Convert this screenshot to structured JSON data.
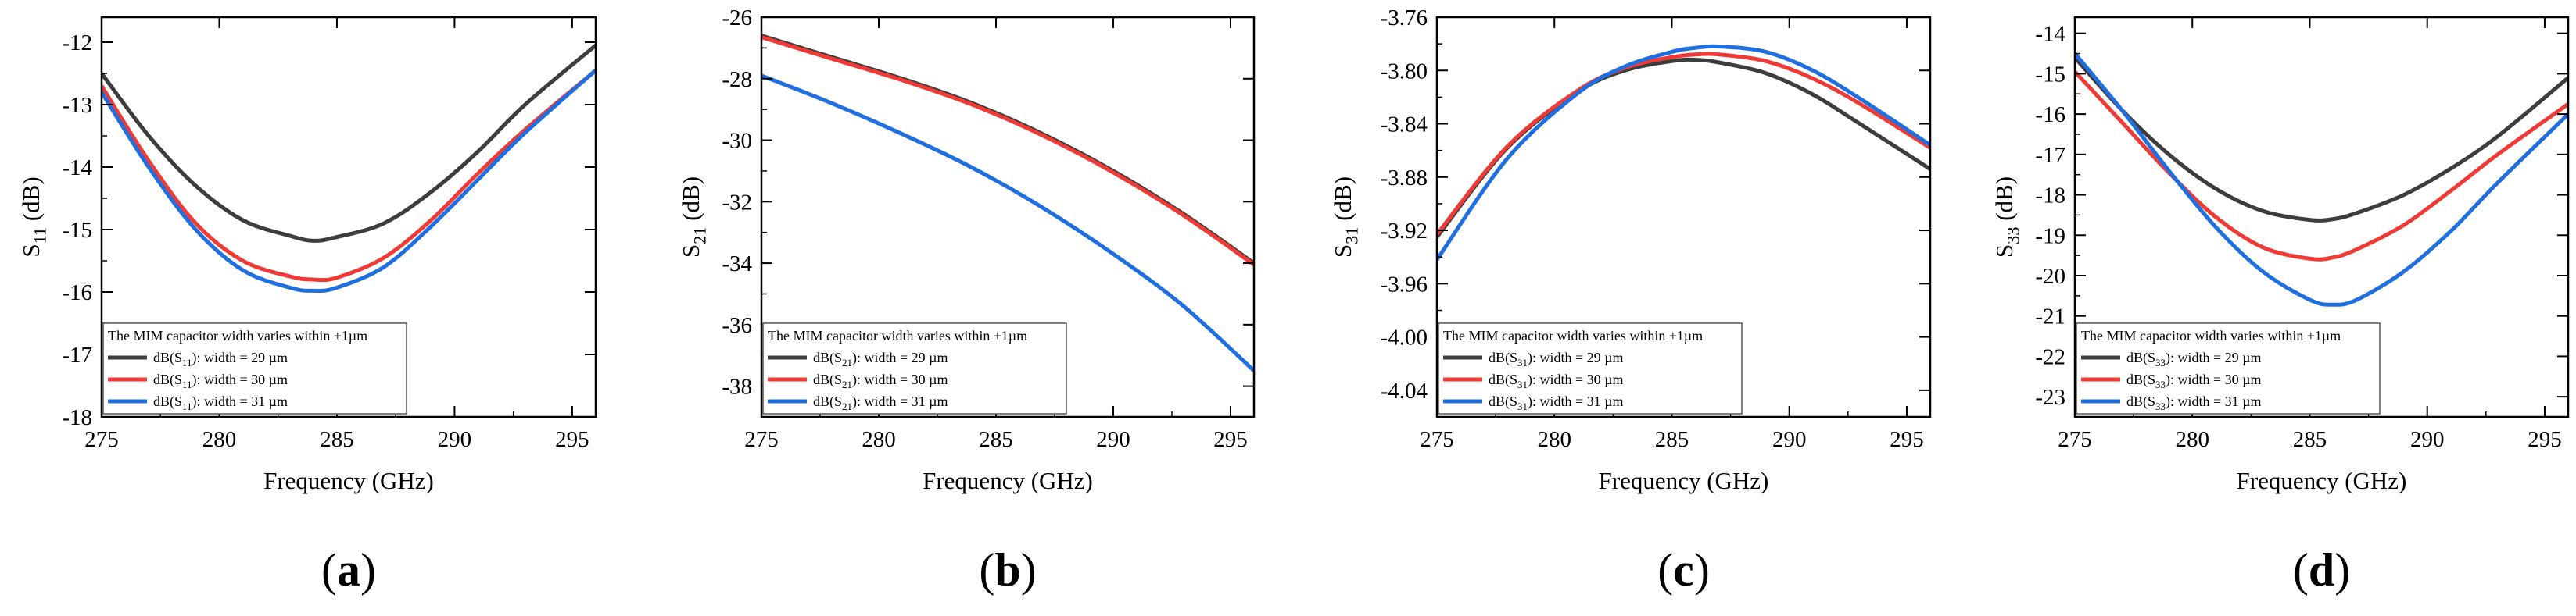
{
  "figure": {
    "legend_title": "The MIM capacitor width varies within ±1µm",
    "xlabel": "Frequency (GHz)",
    "series_colors": [
      "#3d3d3d",
      "#f03a35",
      "#1f6fe0"
    ]
  },
  "chart_data": [
    {
      "type": "line",
      "panel_label": "(a)",
      "title": "",
      "xlabel": "Frequency (GHz)",
      "ylabel": "S11 (dB)",
      "ylabel_main": "S",
      "ylabel_sub": "11",
      "ylabel_unit": " (dB)",
      "xlim": [
        275,
        296
      ],
      "ylim": [
        -18,
        -11.6
      ],
      "xticks": [
        275,
        280,
        285,
        290,
        295
      ],
      "yticks": [
        -18,
        -17,
        -16,
        -15,
        -14,
        -13,
        -12
      ],
      "legend_title": "The MIM capacitor width varies within ±1µm",
      "legend_position": "bottom-left",
      "series": [
        {
          "name": "dB(S11): width = 29 µm",
          "name_main": "dB(S",
          "name_sub": "11",
          "name_rest": "): width = 29 µm",
          "color": "#3d3d3d",
          "x": [
            275,
            277,
            279,
            281,
            283,
            284,
            285,
            287,
            289,
            291,
            293,
            296
          ],
          "y": [
            -12.5,
            -13.5,
            -14.3,
            -14.85,
            -15.1,
            -15.18,
            -15.12,
            -14.9,
            -14.4,
            -13.75,
            -13.0,
            -12.05
          ]
        },
        {
          "name": "dB(S11): width = 30 µm",
          "name_main": "dB(S",
          "name_sub": "11",
          "name_rest": "): width = 30 µm",
          "color": "#f03a35",
          "x": [
            275,
            277,
            279,
            281,
            283,
            284,
            285,
            287,
            289,
            291,
            293,
            296
          ],
          "y": [
            -12.7,
            -13.9,
            -14.9,
            -15.5,
            -15.75,
            -15.8,
            -15.77,
            -15.45,
            -14.85,
            -14.1,
            -13.4,
            -12.45
          ]
        },
        {
          "name": "dB(S11): width = 31 µm",
          "name_main": "dB(S",
          "name_sub": "11",
          "name_rest": "): width = 31 µm",
          "color": "#1f6fe0",
          "x": [
            275,
            277,
            279,
            281,
            283,
            284,
            285,
            287,
            289,
            291,
            293,
            296
          ],
          "y": [
            -12.8,
            -14.0,
            -15.0,
            -15.65,
            -15.93,
            -15.98,
            -15.93,
            -15.6,
            -14.95,
            -14.2,
            -13.45,
            -12.45
          ]
        }
      ]
    },
    {
      "type": "line",
      "panel_label": "(b)",
      "title": "",
      "xlabel": "Frequency (GHz)",
      "ylabel": "S21 (dB)",
      "ylabel_main": "S",
      "ylabel_sub": "21",
      "ylabel_unit": " (dB)",
      "xlim": [
        275,
        296
      ],
      "ylim": [
        -39,
        -26
      ],
      "xticks": [
        275,
        280,
        285,
        290,
        295
      ],
      "yticks": [
        -38,
        -36,
        -34,
        -32,
        -30,
        -28,
        -26
      ],
      "legend_title": "The MIM capacitor width varies within ±1µm",
      "legend_position": "bottom-left",
      "series": [
        {
          "name": "dB(S21): width = 29 µm",
          "name_main": "dB(S",
          "name_sub": "21",
          "name_rest": "): width = 29 µm",
          "color": "#3d3d3d",
          "x": [
            275,
            278,
            281,
            284,
            287,
            290,
            293,
            296
          ],
          "y": [
            -26.6,
            -27.3,
            -28.0,
            -28.8,
            -29.8,
            -31.0,
            -32.4,
            -34.0
          ]
        },
        {
          "name": "dB(S21): width = 30 µm",
          "name_main": "dB(S",
          "name_sub": "21",
          "name_rest": "): width = 30 µm",
          "color": "#f03a35",
          "x": [
            275,
            278,
            281,
            284,
            287,
            290,
            293,
            296
          ],
          "y": [
            -26.65,
            -27.35,
            -28.05,
            -28.85,
            -29.85,
            -31.05,
            -32.45,
            -34.05
          ]
        },
        {
          "name": "dB(S21): width = 31 µm",
          "name_main": "dB(S",
          "name_sub": "21",
          "name_rest": "): width = 31 µm",
          "color": "#1f6fe0",
          "x": [
            275,
            278,
            281,
            284,
            287,
            290,
            293,
            296
          ],
          "y": [
            -27.9,
            -28.8,
            -29.8,
            -30.9,
            -32.2,
            -33.7,
            -35.4,
            -37.5
          ]
        }
      ]
    },
    {
      "type": "line",
      "panel_label": "(c)",
      "title": "",
      "xlabel": "Frequency (GHz)",
      "ylabel": "S31 (dB)",
      "ylabel_main": "S",
      "ylabel_sub": "31",
      "ylabel_unit": " (dB)",
      "xlim": [
        275,
        296
      ],
      "ylim": [
        -4.06,
        -3.76
      ],
      "xticks": [
        275,
        280,
        285,
        290,
        295
      ],
      "yticks": [
        -4.04,
        -4.0,
        -3.96,
        -3.92,
        -3.88,
        -3.84,
        -3.8,
        -3.76
      ],
      "ytick_labels": [
        "-4.04",
        "-4.00",
        "-3.96",
        "-3.92",
        "-3.88",
        "-3.84",
        "-3.80",
        "-3.76"
      ],
      "legend_title": "The MIM capacitor width varies within ±1µm",
      "legend_position": "bottom-left",
      "series": [
        {
          "name": "dB(S31): width = 29 µm",
          "name_main": "dB(S",
          "name_sub": "31",
          "name_rest": "): width = 29 µm",
          "color": "#3d3d3d",
          "x": [
            275,
            278,
            281,
            283,
            285,
            286,
            287,
            289,
            291,
            293,
            296
          ],
          "y": [
            -3.925,
            -3.858,
            -3.816,
            -3.8,
            -3.793,
            -3.792,
            -3.794,
            -3.802,
            -3.818,
            -3.84,
            -3.874
          ]
        },
        {
          "name": "dB(S31): width = 30 µm",
          "name_main": "dB(S",
          "name_sub": "31",
          "name_rest": "): width = 30 µm",
          "color": "#f03a35",
          "x": [
            275,
            278,
            281,
            283,
            285,
            286,
            287,
            289,
            291,
            293,
            296
          ],
          "y": [
            -3.923,
            -3.857,
            -3.815,
            -3.798,
            -3.79,
            -3.788,
            -3.788,
            -3.793,
            -3.806,
            -3.825,
            -3.858
          ]
        },
        {
          "name": "dB(S31): width = 31 µm",
          "name_main": "dB(S",
          "name_sub": "31",
          "name_rest": "): width = 31 µm",
          "color": "#1f6fe0",
          "x": [
            275,
            278,
            281,
            283,
            285,
            286,
            287,
            289,
            291,
            293,
            296
          ],
          "y": [
            -3.942,
            -3.866,
            -3.817,
            -3.797,
            -3.786,
            -3.783,
            -3.782,
            -3.786,
            -3.8,
            -3.821,
            -3.856
          ]
        }
      ]
    },
    {
      "type": "line",
      "panel_label": "(d)",
      "title": "",
      "xlabel": "Frequency (GHz)",
      "ylabel": "S33 (dB)",
      "ylabel_main": "S",
      "ylabel_sub": "33",
      "ylabel_unit": " (dB)",
      "xlim": [
        275,
        296
      ],
      "ylim": [
        -23.5,
        -13.6
      ],
      "xticks": [
        275,
        280,
        285,
        290,
        295
      ],
      "yticks": [
        -23,
        -22,
        -21,
        -20,
        -19,
        -18,
        -17,
        -16,
        -15,
        -14
      ],
      "legend_title": "The MIM capacitor width varies within ±1µm",
      "legend_position": "bottom-left",
      "series": [
        {
          "name": "dB(S33): width = 29 µm",
          "name_main": "dB(S",
          "name_sub": "33",
          "name_rest": "): width = 29 µm",
          "color": "#3d3d3d",
          "x": [
            275,
            277,
            279,
            281,
            283,
            285,
            286,
            287,
            289,
            291,
            293,
            296
          ],
          "y": [
            -14.6,
            -15.9,
            -17.0,
            -17.85,
            -18.4,
            -18.62,
            -18.6,
            -18.45,
            -18.0,
            -17.35,
            -16.55,
            -15.1
          ]
        },
        {
          "name": "dB(S33): width = 30 µm",
          "name_main": "dB(S",
          "name_sub": "33",
          "name_rest": "): width = 30 µm",
          "color": "#f03a35",
          "x": [
            275,
            277,
            279,
            281,
            283,
            285,
            286,
            287,
            289,
            291,
            293,
            296
          ],
          "y": [
            -14.95,
            -16.2,
            -17.45,
            -18.55,
            -19.3,
            -19.58,
            -19.55,
            -19.35,
            -18.75,
            -17.9,
            -17.0,
            -15.75
          ]
        },
        {
          "name": "dB(S33): width = 31 µm",
          "name_main": "dB(S",
          "name_sub": "33",
          "name_rest": "): width = 31 µm",
          "color": "#1f6fe0",
          "x": [
            275,
            277,
            279,
            281,
            283,
            285,
            286,
            287,
            289,
            291,
            293,
            296
          ],
          "y": [
            -14.5,
            -15.9,
            -17.4,
            -18.8,
            -19.9,
            -20.6,
            -20.72,
            -20.6,
            -19.9,
            -18.9,
            -17.7,
            -16.0
          ]
        }
      ]
    }
  ]
}
